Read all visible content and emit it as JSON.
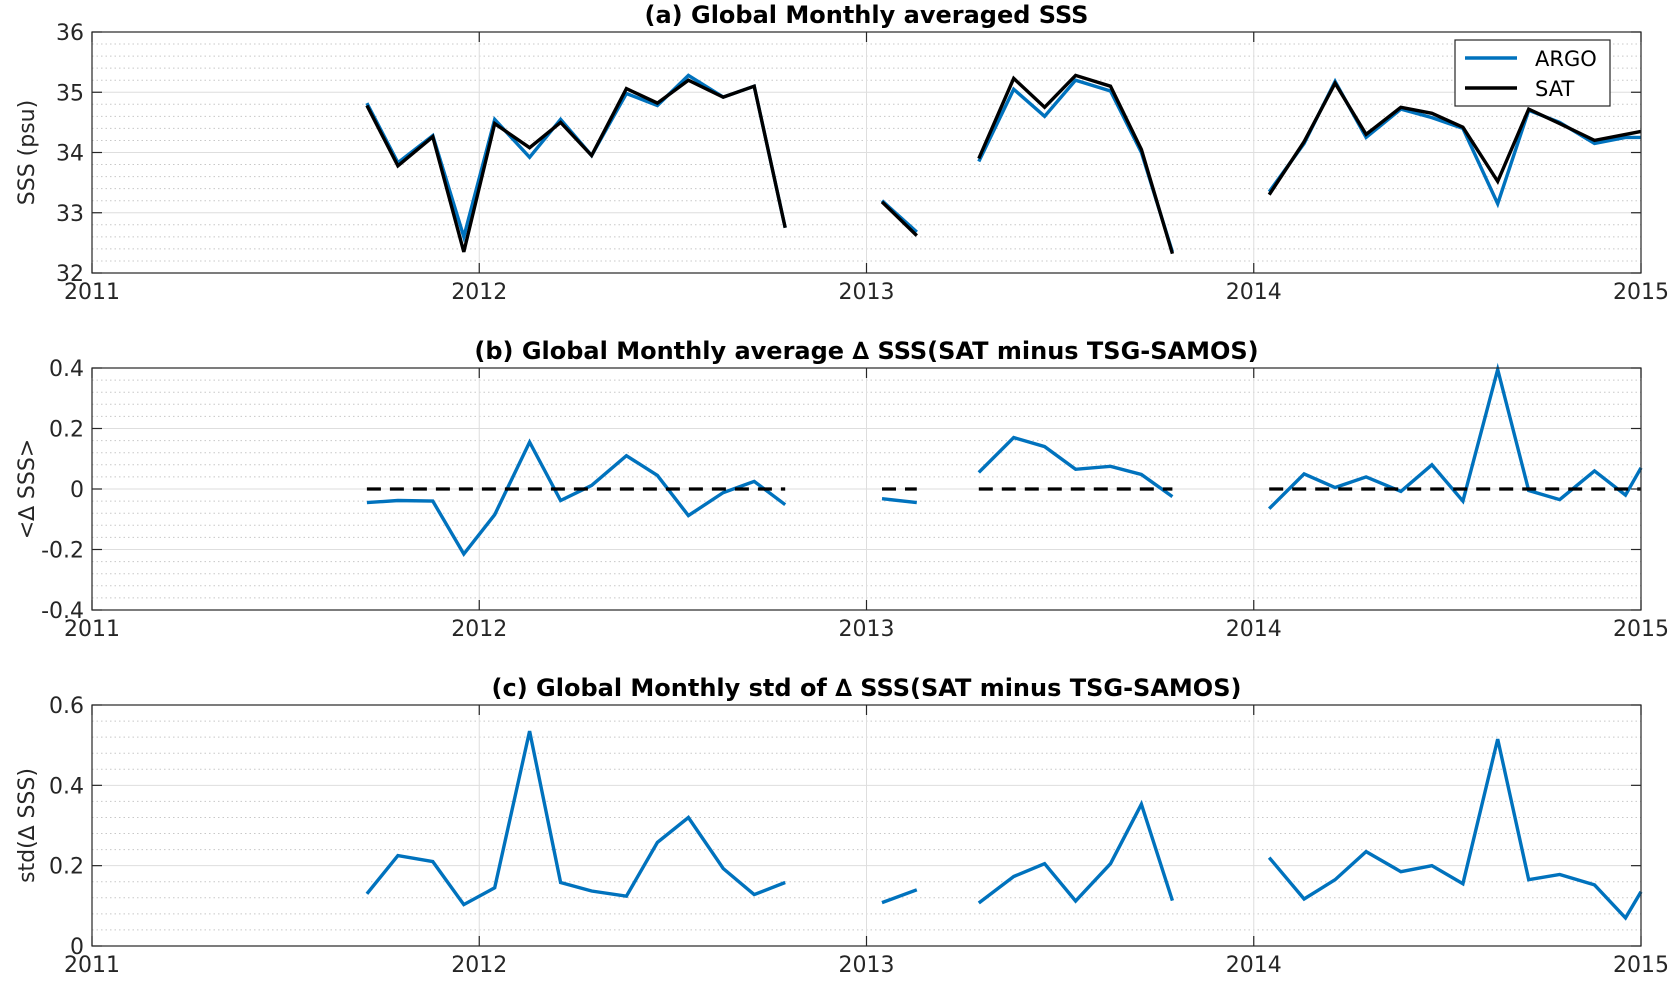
{
  "colors": {
    "argo": "#0072BD",
    "sat": "#000000",
    "axis": "#262626",
    "grid": "#dedede",
    "minor_grid": "#c8c8c8",
    "background": "#ffffff"
  },
  "chart_data": [
    {
      "type": "line",
      "title": "(a) Global Monthly averaged SSS",
      "xlabel": "",
      "ylabel": "SSS (psu)",
      "xlim": [
        2011,
        2015
      ],
      "ylim": [
        32,
        36
      ],
      "xticks": [
        2011,
        2012,
        2013,
        2014,
        2015
      ],
      "yticks": [
        32,
        33,
        34,
        35,
        36
      ],
      "grid": true,
      "minor_grid": true,
      "legend": {
        "placement": "top-right",
        "entries": [
          "ARGO",
          "SAT"
        ]
      },
      "series": [
        {
          "name": "ARGO",
          "color": "#0072BD",
          "segments": [
            {
              "x": [
                2011.71,
                2011.79,
                2011.88,
                2011.96,
                2012.04,
                2012.13,
                2012.21,
                2012.29,
                2012.38,
                2012.46,
                2012.54,
                2012.63,
                2012.71,
                2012.79
              ],
              "y": [
                34.82,
                33.83,
                34.28,
                32.6,
                34.55,
                33.92,
                34.55,
                33.95,
                34.98,
                34.78,
                35.28,
                34.92,
                35.1,
                32.75
              ]
            },
            {
              "x": [
                2013.04,
                2013.13
              ],
              "y": [
                33.2,
                32.68
              ]
            },
            {
              "x": [
                2013.29,
                2013.38,
                2013.46,
                2013.54,
                2013.63,
                2013.71,
                2013.79
              ],
              "y": [
                33.85,
                35.05,
                34.6,
                35.2,
                35.02,
                34.0,
                32.35
              ]
            },
            {
              "x": [
                2014.04,
                2014.13,
                2014.21,
                2014.29,
                2014.38,
                2014.46,
                2014.54,
                2014.63,
                2014.71,
                2014.79,
                2014.88,
                2014.96,
                2015.0
              ],
              "y": [
                33.35,
                34.15,
                35.18,
                34.25,
                34.72,
                34.58,
                34.4,
                33.15,
                34.7,
                34.5,
                34.15,
                34.25,
                34.25
              ]
            }
          ]
        },
        {
          "name": "SAT",
          "color": "#000000",
          "segments": [
            {
              "x": [
                2011.71,
                2011.79,
                2011.88,
                2011.96,
                2012.04,
                2012.13,
                2012.21,
                2012.29,
                2012.38,
                2012.46,
                2012.54,
                2012.63,
                2012.71,
                2012.79
              ],
              "y": [
                34.78,
                33.78,
                34.26,
                32.35,
                34.48,
                34.08,
                34.5,
                33.95,
                35.06,
                34.82,
                35.2,
                34.92,
                35.1,
                32.75
              ]
            },
            {
              "x": [
                2013.04,
                2013.13
              ],
              "y": [
                33.18,
                32.62
              ]
            },
            {
              "x": [
                2013.29,
                2013.38,
                2013.46,
                2013.54,
                2013.63,
                2013.71,
                2013.79
              ],
              "y": [
                33.9,
                35.23,
                34.75,
                35.28,
                35.1,
                34.05,
                32.32
              ]
            },
            {
              "x": [
                2014.04,
                2014.13,
                2014.21,
                2014.29,
                2014.38,
                2014.46,
                2014.54,
                2014.63,
                2014.71,
                2014.79,
                2014.88,
                2014.96,
                2015.0
              ],
              "y": [
                33.3,
                34.18,
                35.15,
                34.3,
                34.75,
                34.65,
                34.42,
                33.52,
                34.72,
                34.48,
                34.2,
                34.3,
                34.35
              ]
            }
          ]
        }
      ]
    },
    {
      "type": "line",
      "title": "(b) Global Monthly average ∆ SSS(SAT minus TSG-SAMOS)",
      "xlabel": "",
      "ylabel": "<∆ SSS>",
      "xlim": [
        2011,
        2015
      ],
      "ylim": [
        -0.4,
        0.4
      ],
      "xticks": [
        2011,
        2012,
        2013,
        2014,
        2015
      ],
      "yticks": [
        -0.4,
        -0.2,
        0,
        0.2,
        0.4
      ],
      "ytick_labels": [
        "-0.4",
        "-0.2",
        "0",
        "0.2",
        "0.4"
      ],
      "grid": true,
      "minor_grid": true,
      "series": [
        {
          "color": "#0072BD",
          "segments": [
            {
              "x": [
                2011.71,
                2011.79,
                2011.88,
                2011.96,
                2012.04,
                2012.13,
                2012.21,
                2012.29,
                2012.38,
                2012.46,
                2012.54,
                2012.63,
                2012.71,
                2012.79
              ],
              "y": [
                -0.045,
                -0.038,
                -0.04,
                -0.215,
                -0.085,
                0.155,
                -0.038,
                0.012,
                0.11,
                0.045,
                -0.088,
                -0.012,
                0.025,
                -0.052
              ]
            },
            {
              "x": [
                2013.04,
                2013.13
              ],
              "y": [
                -0.032,
                -0.045
              ]
            },
            {
              "x": [
                2013.29,
                2013.38,
                2013.46,
                2013.54,
                2013.63,
                2013.71,
                2013.79
              ],
              "y": [
                0.055,
                0.17,
                0.14,
                0.065,
                0.075,
                0.048,
                -0.025
              ]
            },
            {
              "x": [
                2014.04,
                2014.13,
                2014.21,
                2014.29,
                2014.38,
                2014.46,
                2014.54,
                2014.63,
                2014.71,
                2014.79,
                2014.88,
                2014.96,
                2015.0
              ],
              "y": [
                -0.065,
                0.05,
                0.005,
                0.04,
                -0.008,
                0.08,
                -0.04,
                0.395,
                -0.005,
                -0.035,
                0.06,
                -0.02,
                0.07
              ]
            }
          ]
        },
        {
          "color": "#000000",
          "dashed": true,
          "segments": [
            {
              "x": [
                2011.71,
                2012.79
              ],
              "y": [
                0,
                0
              ]
            },
            {
              "x": [
                2013.04,
                2013.13
              ],
              "y": [
                0,
                0
              ]
            },
            {
              "x": [
                2013.29,
                2013.79
              ],
              "y": [
                0,
                0
              ]
            },
            {
              "x": [
                2014.04,
                2015.0
              ],
              "y": [
                0,
                0
              ]
            }
          ]
        }
      ]
    },
    {
      "type": "line",
      "title": "(c) Global Monthly std of ∆ SSS(SAT minus TSG-SAMOS)",
      "xlabel": "",
      "ylabel": "std(∆ SSS)",
      "xlim": [
        2011,
        2015
      ],
      "ylim": [
        0,
        0.6
      ],
      "xticks": [
        2011,
        2012,
        2013,
        2014,
        2015
      ],
      "yticks": [
        0,
        0.2,
        0.4,
        0.6
      ],
      "ytick_labels": [
        "0",
        "0.2",
        "0.4",
        "0.6"
      ],
      "grid": true,
      "minor_grid": true,
      "series": [
        {
          "color": "#0072BD",
          "segments": [
            {
              "x": [
                2011.71,
                2011.79,
                2011.88,
                2011.96,
                2012.04,
                2012.13,
                2012.21,
                2012.29,
                2012.38,
                2012.46,
                2012.54,
                2012.63,
                2012.71,
                2012.79
              ],
              "y": [
                0.13,
                0.225,
                0.21,
                0.103,
                0.145,
                0.535,
                0.158,
                0.137,
                0.124,
                0.258,
                0.32,
                0.193,
                0.128,
                0.158
              ]
            },
            {
              "x": [
                2013.04,
                2013.13
              ],
              "y": [
                0.108,
                0.14
              ]
            },
            {
              "x": [
                2013.29,
                2013.38,
                2013.46,
                2013.54,
                2013.63,
                2013.71,
                2013.79
              ],
              "y": [
                0.107,
                0.173,
                0.205,
                0.112,
                0.205,
                0.353,
                0.113
              ]
            },
            {
              "x": [
                2014.04,
                2014.13,
                2014.21,
                2014.29,
                2014.38,
                2014.46,
                2014.54,
                2014.63,
                2014.71,
                2014.79,
                2014.88,
                2014.96,
                2015.0
              ],
              "y": [
                0.22,
                0.117,
                0.165,
                0.235,
                0.185,
                0.2,
                0.155,
                0.515,
                0.165,
                0.178,
                0.152,
                0.07,
                0.135
              ]
            }
          ]
        }
      ]
    }
  ]
}
